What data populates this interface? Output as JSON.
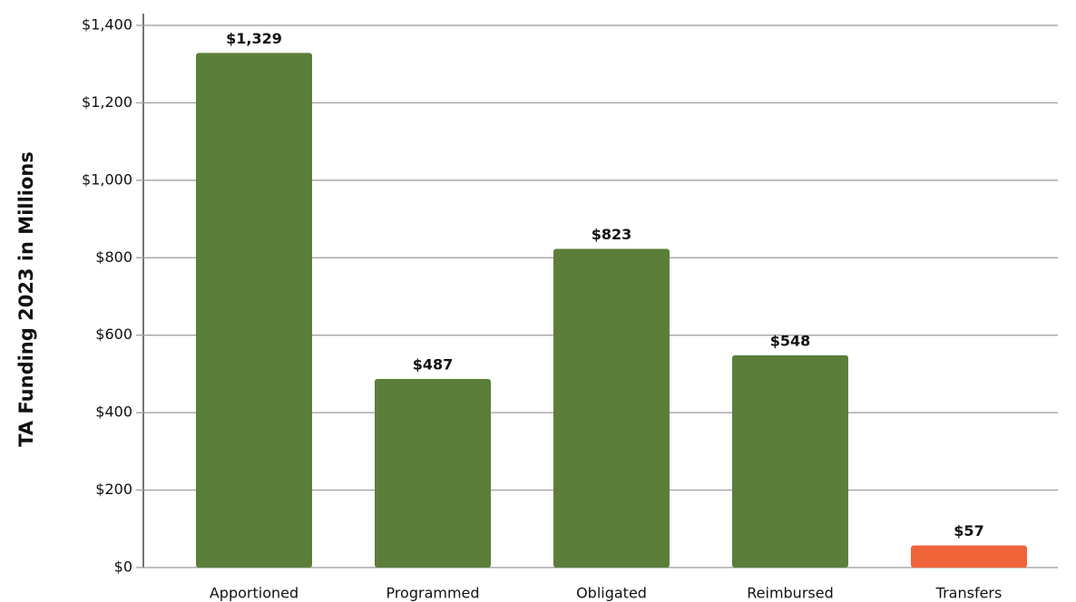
{
  "chart_data": {
    "type": "bar",
    "y_axis_label": "TA Funding 2023 in Millions",
    "categories": [
      "Apportioned",
      "Programmed",
      "Obligated",
      "Reimbursed",
      "Transfers"
    ],
    "values": [
      1329,
      487,
      823,
      548,
      57
    ],
    "value_labels": [
      "$1,329",
      "$487",
      "$823",
      "$548",
      "$57"
    ],
    "colors": [
      "#5b7f3a",
      "#5b7f3a",
      "#5b7f3a",
      "#5b7f3a",
      "#ef6439"
    ],
    "ylim": [
      0,
      1400
    ],
    "yticks": [
      {
        "value": 0,
        "label": "$0"
      },
      {
        "value": 200,
        "label": "$200"
      },
      {
        "value": 400,
        "label": "$400"
      },
      {
        "value": 600,
        "label": "$600"
      },
      {
        "value": 800,
        "label": "$800"
      },
      {
        "value": 1000,
        "label": "$1,000"
      },
      {
        "value": 1200,
        "label": "$1,200"
      },
      {
        "value": 1400,
        "label": "$1,400"
      }
    ],
    "grid": true
  }
}
